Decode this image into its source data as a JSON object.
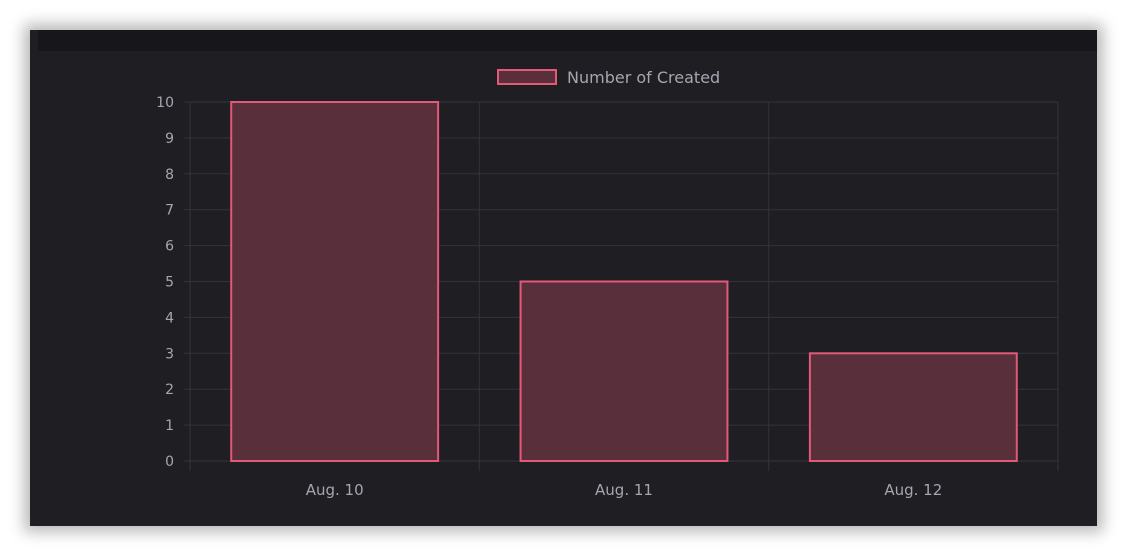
{
  "chart_data": {
    "type": "bar",
    "categories": [
      "Aug. 10",
      "Aug. 11",
      "Aug. 12"
    ],
    "series": [
      {
        "name": "Number of Created",
        "values": [
          10,
          5,
          3
        ]
      }
    ],
    "yticks": [
      "0",
      "1",
      "2",
      "3",
      "4",
      "5",
      "6",
      "7",
      "8",
      "9",
      "10"
    ],
    "ylim": [
      0,
      10
    ],
    "legend": {
      "position": "top",
      "label": "Number of Created"
    },
    "grid": true,
    "colors": {
      "bar_fill": "#582f3b",
      "bar_border": "#e35a78",
      "grid": "#34323d",
      "background": "#1f1e23",
      "text": "#a7a5b0"
    }
  }
}
